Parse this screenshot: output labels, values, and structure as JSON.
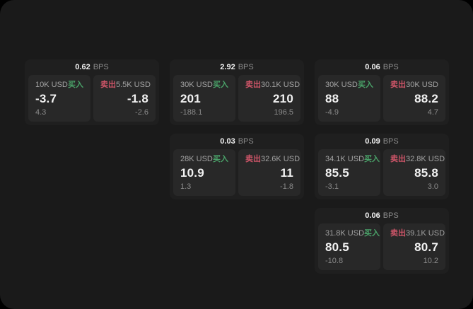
{
  "colors": {
    "panel_bg": "#1a1a1a",
    "card_bg": "#1f1f1f",
    "subcard_bg": "#282828",
    "buy_green": "#4aa269",
    "sell_red": "#cd5568"
  },
  "unit_label": "BPS",
  "buy_label": "买入",
  "sell_label": "卖出",
  "cards": [
    {
      "row": 1,
      "col": 1,
      "bps": "0.62",
      "buy": {
        "amount": "10K USD",
        "value": "-3.7",
        "delta": "4.3"
      },
      "sell": {
        "amount": "5.5K USD",
        "value": "-1.8",
        "delta": "-2.6"
      }
    },
    {
      "row": 1,
      "col": 2,
      "bps": "2.92",
      "buy": {
        "amount": "30K USD",
        "value": "201",
        "delta": "-188.1"
      },
      "sell": {
        "amount": "30.1K USD",
        "value": "210",
        "delta": "196.5"
      }
    },
    {
      "row": 1,
      "col": 3,
      "bps": "0.06",
      "buy": {
        "amount": "30K USD",
        "value": "88",
        "delta": "-4.9"
      },
      "sell": {
        "amount": "30K USD",
        "value": "88.2",
        "delta": "4.7"
      }
    },
    {
      "row": 2,
      "col": 2,
      "bps": "0.03",
      "buy": {
        "amount": "28K USD",
        "value": "10.9",
        "delta": "1.3"
      },
      "sell": {
        "amount": "32.6K USD",
        "value": "11",
        "delta": "-1.8"
      }
    },
    {
      "row": 2,
      "col": 3,
      "bps": "0.09",
      "buy": {
        "amount": "34.1K USD",
        "value": "85.5",
        "delta": "-3.1"
      },
      "sell": {
        "amount": "32.8K USD",
        "value": "85.8",
        "delta": "3.0"
      }
    },
    {
      "row": 3,
      "col": 3,
      "bps": "0.06",
      "buy": {
        "amount": "31.8K USD",
        "value": "80.5",
        "delta": "-10.8"
      },
      "sell": {
        "amount": "39.1K USD",
        "value": "80.7",
        "delta": "10.2"
      }
    }
  ]
}
